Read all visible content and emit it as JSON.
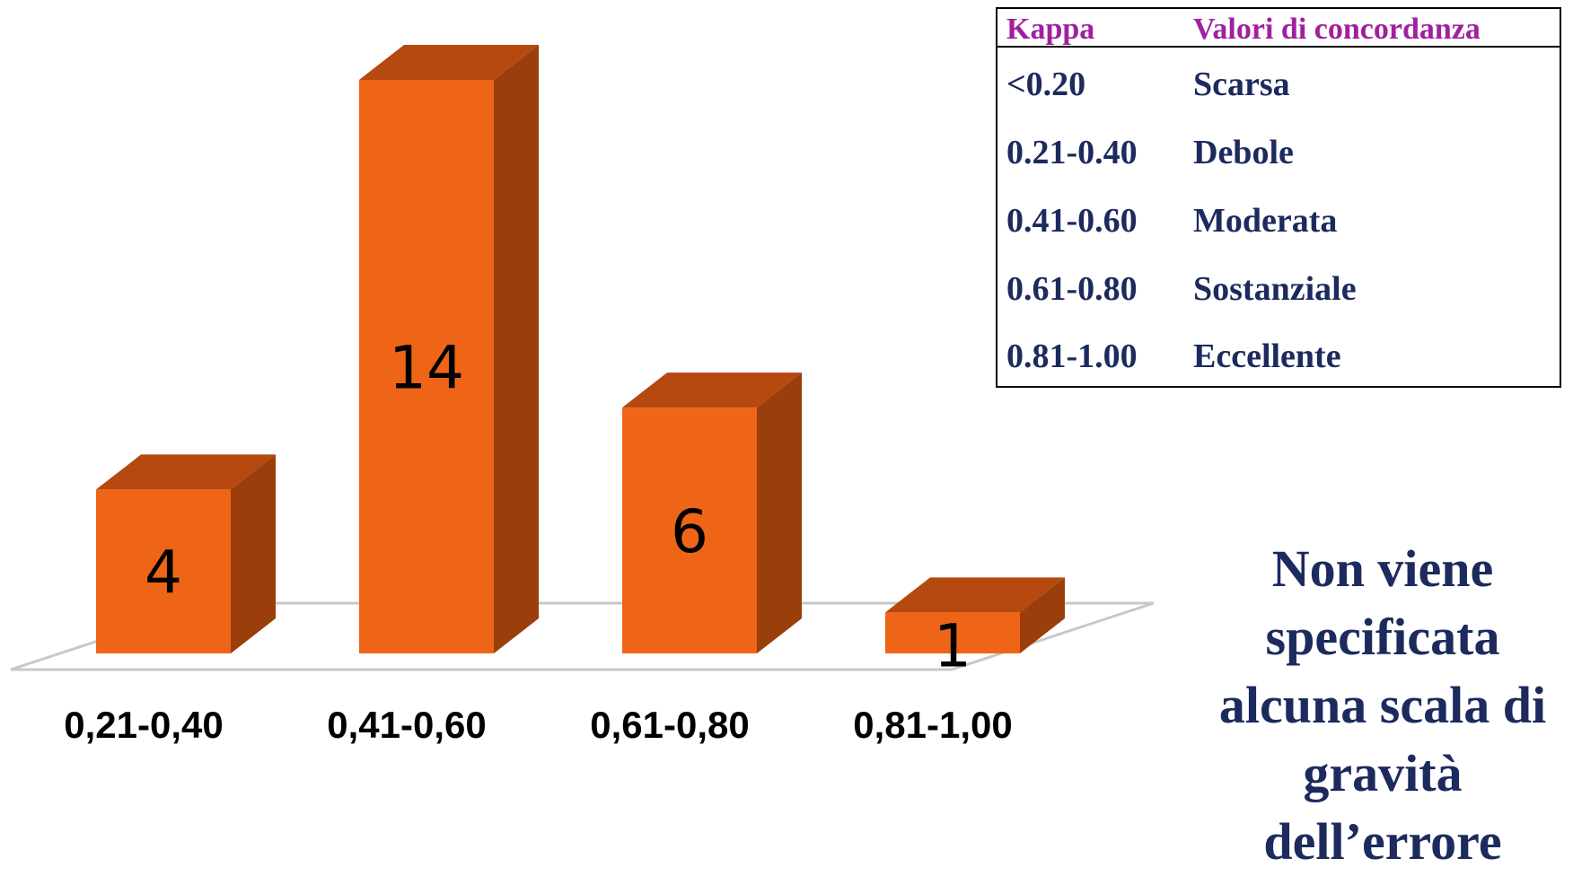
{
  "chart_data": {
    "type": "bar",
    "categories": [
      "0,21-0,40",
      "0,41-0,60",
      "0,61-0,80",
      "0,81-1,00"
    ],
    "values": [
      4,
      14,
      6,
      1
    ],
    "data_labels": [
      "4",
      "14",
      "6",
      "1"
    ],
    "title": "",
    "xlabel": "",
    "ylabel": "",
    "ylim": [
      0,
      14
    ],
    "grid": false,
    "legend": "none",
    "style": "3d-column",
    "colors": {
      "front": "#ee6518",
      "top": "#b5490f",
      "side": "#9a3e0b",
      "floor_stroke": "#c8c8c8"
    }
  },
  "kappa_table": {
    "headers": [
      "Kappa",
      "Valori di concordanza"
    ],
    "rows": [
      {
        "kappa": "<0.20",
        "valore": "Scarsa"
      },
      {
        "kappa": "0.21-0.40",
        "valore": "Debole"
      },
      {
        "kappa": "0.41-0.60",
        "valore": "Moderata"
      },
      {
        "kappa": "0.61-0.80",
        "valore": "Sostanziale"
      },
      {
        "kappa": "0.81-1.00",
        "valore": "Eccellente"
      }
    ],
    "header_color": "#a020a0",
    "text_color": "#1c2a5e"
  },
  "note": {
    "lines": [
      "Non viene",
      "specificata",
      "alcuna scala di",
      "gravità",
      "dell’errore"
    ],
    "color": "#1c2a5e"
  }
}
